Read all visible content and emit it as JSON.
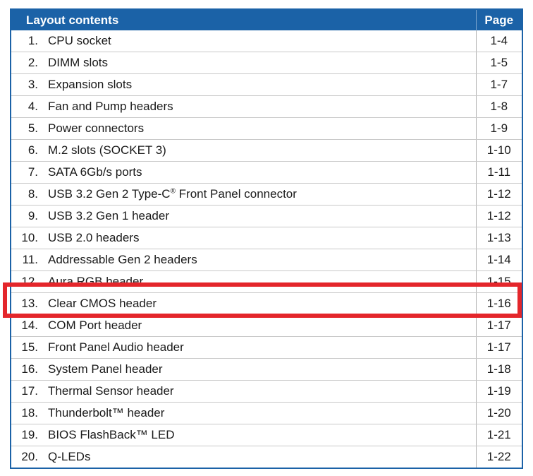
{
  "table": {
    "header": {
      "content_label": "Layout contents",
      "page_label": "Page"
    },
    "rows": [
      {
        "num": "1.",
        "label": "CPU socket",
        "page": "1-4"
      },
      {
        "num": "2.",
        "label": "DIMM slots",
        "page": "1-5"
      },
      {
        "num": "3.",
        "label": "Expansion slots",
        "page": "1-7"
      },
      {
        "num": "4.",
        "label": "Fan and Pump headers",
        "page": "1-8"
      },
      {
        "num": "5.",
        "label": "Power connectors",
        "page": "1-9"
      },
      {
        "num": "6.",
        "label": "M.2 slots (SOCKET 3)",
        "page": "1-10"
      },
      {
        "num": "7.",
        "label": "SATA 6Gb/s ports",
        "page": "1-11"
      },
      {
        "num": "8.",
        "label": "USB 3.2 Gen 2 Type-C",
        "label_sup": "®",
        "label_suffix": " Front Panel connector",
        "page": "1-12"
      },
      {
        "num": "9.",
        "label": "USB 3.2 Gen 1 header",
        "page": "1-12"
      },
      {
        "num": "10.",
        "label": "USB 2.0 headers",
        "page": "1-13"
      },
      {
        "num": "11.",
        "label": "Addressable Gen 2 headers",
        "page": "1-14"
      },
      {
        "num": "12.",
        "label": "Aura RGB header",
        "page": "1-15"
      },
      {
        "num": "13.",
        "label": "Clear CMOS header",
        "page": "1-16"
      },
      {
        "num": "14.",
        "label": "COM Port header",
        "page": "1-17"
      },
      {
        "num": "15.",
        "label": "Front Panel Audio header",
        "page": "1-17"
      },
      {
        "num": "16.",
        "label": "System Panel header",
        "page": "1-18"
      },
      {
        "num": "17.",
        "label": "Thermal Sensor header",
        "page": "1-19"
      },
      {
        "num": "18.",
        "label": "Thunderbolt™ header",
        "page": "1-20"
      },
      {
        "num": "19.",
        "label": "BIOS FlashBack™ LED",
        "page": "1-21"
      },
      {
        "num": "20.",
        "label": "Q-LEDs",
        "page": "1-22"
      }
    ]
  },
  "highlight": {
    "row_num": "13.",
    "color": "#e4262b"
  },
  "colors": {
    "header_bg": "#1b62a7",
    "header_text": "#ffffff",
    "text": "#1a1a1a"
  }
}
